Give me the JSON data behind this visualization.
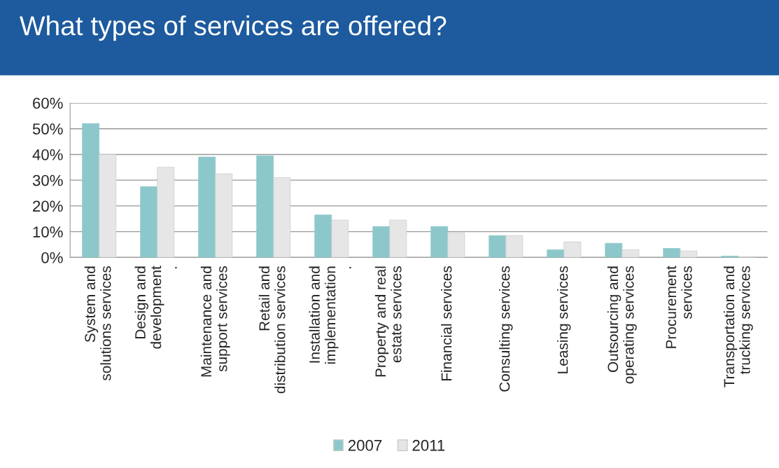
{
  "chart_data": {
    "type": "bar",
    "title": "What types of services are offered?",
    "categories": [
      "System and\nsolutions services",
      "Design and\ndevelopment\n.",
      "Maintenance and\nsupport services",
      "Retail and\ndistribution services",
      "Installation and\nimplementation\n.",
      "Property and real\nestate services",
      "Financial services",
      "Consulting services",
      "Leasing services",
      "Outsourcing and\noperating services",
      "Procurement\nservices",
      "Transportation and\ntrucking services"
    ],
    "series": [
      {
        "name": "2007",
        "color": "#8cc8cb",
        "values": [
          52,
          27.5,
          39,
          39.5,
          16.5,
          12,
          12,
          8.5,
          3,
          5.5,
          3.5,
          0.5
        ]
      },
      {
        "name": "2011",
        "color": "#e6e6e6",
        "values": [
          40,
          35,
          32.5,
          31,
          14.5,
          14.5,
          9.5,
          8.5,
          6,
          3,
          2.5,
          0.3
        ]
      }
    ],
    "ylim": [
      0,
      60
    ],
    "yticks": [
      {
        "value": 0,
        "label": "0%"
      },
      {
        "value": 10,
        "label": "10%"
      },
      {
        "value": 20,
        "label": "20%"
      },
      {
        "value": 30,
        "label": "30%"
      },
      {
        "value": 40,
        "label": "40%"
      },
      {
        "value": 50,
        "label": "50%"
      },
      {
        "value": 60,
        "label": "60%"
      }
    ],
    "grid": "y",
    "legend": "bottom"
  }
}
